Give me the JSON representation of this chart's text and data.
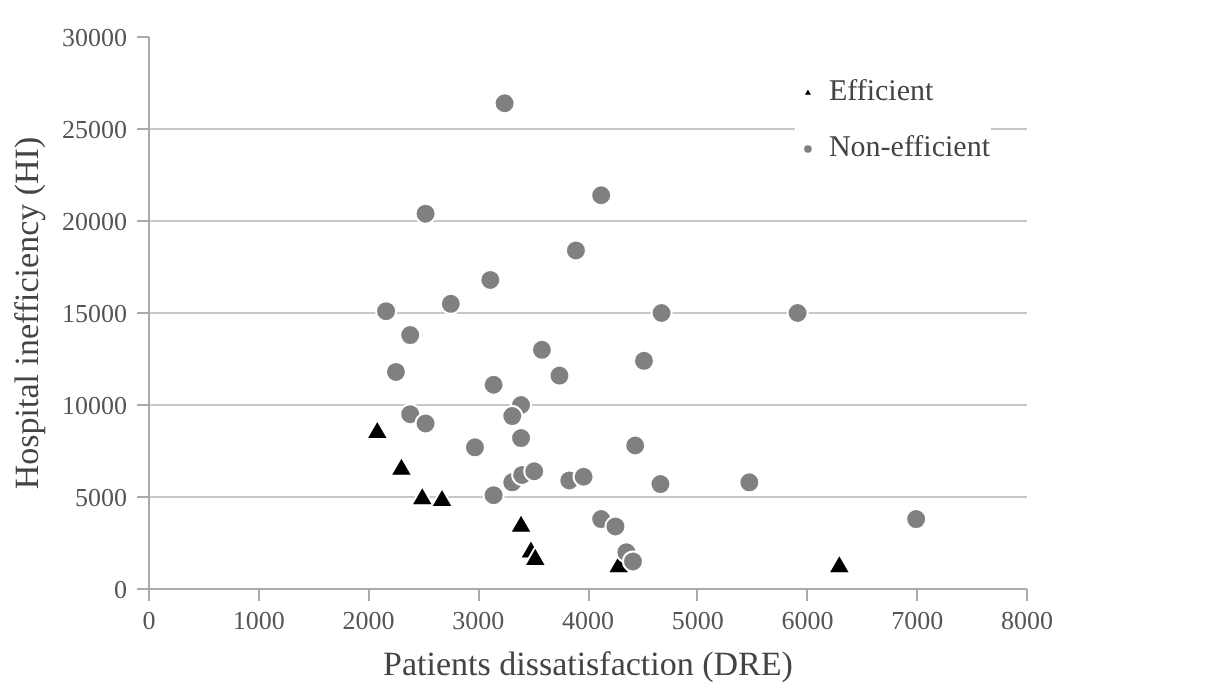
{
  "chart_data": {
    "type": "scatter",
    "xlabel": "Patients dissatisfaction (DRE)",
    "ylabel": "Hospital inefficiency (HI)",
    "xlim": [
      0,
      8000
    ],
    "xticks": [
      0,
      1000,
      2000,
      3000,
      4000,
      5000,
      6000,
      7000,
      8000
    ],
    "ylim": [
      0,
      30000
    ],
    "yticks": [
      0,
      5000,
      10000,
      15000,
      20000,
      25000,
      30000
    ],
    "grid": "y",
    "legend": "top right",
    "series": [
      {
        "name": "Efficient",
        "color": "#000000",
        "marker": "triangle",
        "x": [
          2080,
          2300,
          2490,
          2670,
          3390,
          3480,
          3520,
          4280,
          6290
        ],
        "values": [
          8500,
          6500,
          4900,
          4800,
          3400,
          2000,
          1600,
          1200,
          1200
        ]
      },
      {
        "name": "Non-efficient",
        "color": "#808080",
        "marker": "circle",
        "x": [
          3240,
          2520,
          4120,
          3890,
          3110,
          2750,
          2160,
          2380,
          3580,
          4670,
          5910,
          4510,
          2250,
          3140,
          3740,
          2380,
          2520,
          3390,
          3310,
          3390,
          2970,
          3310,
          3400,
          3510,
          3830,
          3960,
          3140,
          4120,
          4250,
          4430,
          4660,
          5470,
          6990,
          4350,
          4410
        ],
        "values": [
          26400,
          20400,
          21400,
          18400,
          16800,
          15500,
          15100,
          13800,
          13000,
          15000,
          15000,
          12400,
          11800,
          11100,
          11600,
          9500,
          9000,
          10000,
          9400,
          8200,
          7700,
          5800,
          6200,
          6400,
          5900,
          6100,
          5100,
          3800,
          3400,
          7800,
          5700,
          5800,
          3800,
          2000,
          1500
        ]
      }
    ]
  }
}
